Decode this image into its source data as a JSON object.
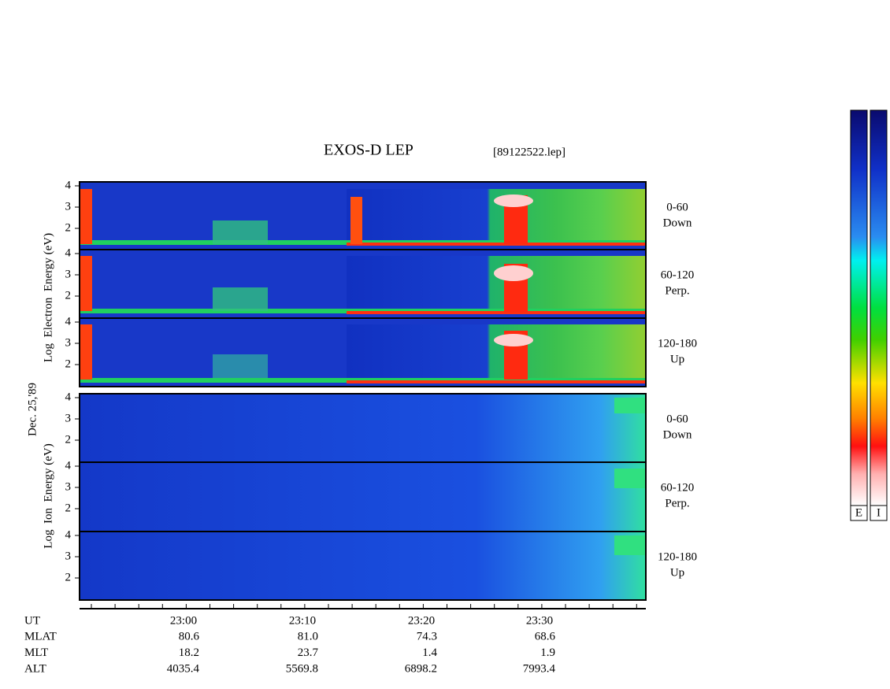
{
  "header": {
    "title": "EXOS-D LEP",
    "file": "[89122522.lep]"
  },
  "date": "Dec. 25,'89",
  "electron": {
    "axis_label": "Log  Electron  Energy (eV)",
    "ticks": [
      "4",
      "3",
      "2"
    ],
    "panels": [
      {
        "angle": "0-60",
        "direction": "Down"
      },
      {
        "angle": "60-120",
        "direction": "Perp."
      },
      {
        "angle": "120-180",
        "direction": "Up"
      }
    ]
  },
  "ion": {
    "axis_label": "Log  Ion  Energy (eV)",
    "ticks": [
      "4",
      "3",
      "2"
    ],
    "panels": [
      {
        "angle": "0-60",
        "direction": "Down"
      },
      {
        "angle": "60-120",
        "direction": "Perp."
      },
      {
        "angle": "120-180",
        "direction": "Up"
      }
    ]
  },
  "time_axis": {
    "labels": [
      "23:00",
      "23:10",
      "23:20",
      "23:30"
    ]
  },
  "orbit": {
    "names": [
      "UT",
      "MLAT",
      "MLT",
      "ALT"
    ],
    "rows": [
      [
        "80.6",
        "81.0",
        "74.3",
        "68.6"
      ],
      [
        "18.2",
        "23.7",
        "1.4",
        "1.9"
      ],
      [
        "4035.4",
        "5569.8",
        "6898.2",
        "7993.4"
      ]
    ]
  },
  "colorbar": {
    "labels": [
      "E",
      "I"
    ]
  }
}
